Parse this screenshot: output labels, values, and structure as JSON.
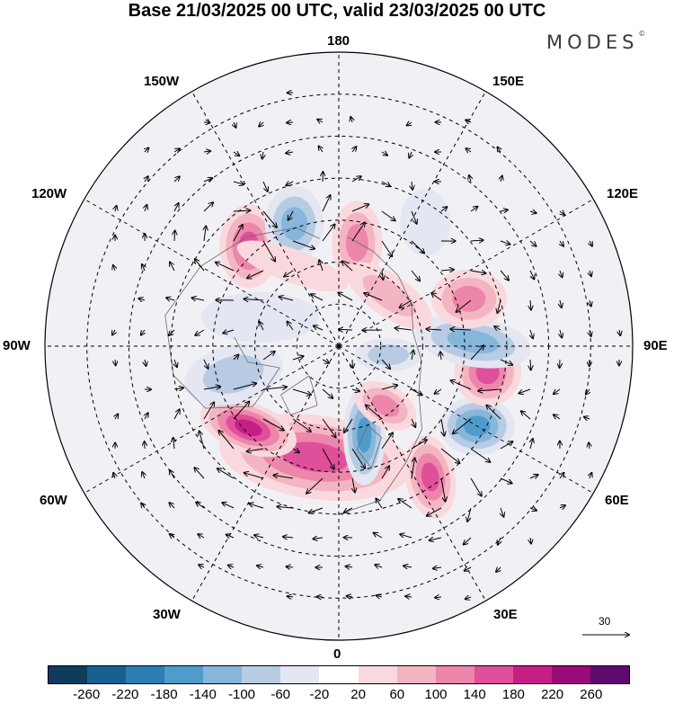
{
  "title": "Base 21/03/2025 00 UTC, valid 23/03/2025 00 UTC",
  "brand": {
    "text": "MODES",
    "mark": "©"
  },
  "projection": "north polar stereographic",
  "field": "geopotential height anomaly with wind vectors",
  "longitude_labels": {
    "top": "180",
    "top_left": "150W",
    "top_right": "150E",
    "upper_left": "120W",
    "upper_right": "120E",
    "left": "90W",
    "right": "90E",
    "lower_left": "60W",
    "lower_right": "60E",
    "bottom_left": "30W",
    "bottom_right": "30E",
    "bottom": "0"
  },
  "reference_vector": {
    "value": "30",
    "icon": "arrow-right-icon"
  },
  "colorbar": {
    "colors": [
      "#0f3b5c",
      "#195f8f",
      "#2b7db3",
      "#4f9bcb",
      "#86b6da",
      "#b7cbe5",
      "#e4e6f1",
      "#ffffff",
      "#f9d9de",
      "#f4b5c3",
      "#ed86ab",
      "#e0509a",
      "#c51f86",
      "#9a0a7a",
      "#5e0a6e"
    ],
    "tick_labels": [
      "-260",
      "-220",
      "-180",
      "-140",
      "-100",
      "-60",
      "-20",
      "20",
      "60",
      "100",
      "140",
      "180",
      "220",
      "260"
    ]
  },
  "anomalies": [
    {
      "name": "pos-1",
      "lon": -12,
      "colat": 27,
      "rx": 23,
      "ry": 10,
      "rot": 8,
      "level": 4
    },
    {
      "name": "pos-2",
      "lon": -48,
      "colat": 29,
      "rx": 12,
      "ry": 6,
      "rot": 20,
      "level": 5
    },
    {
      "name": "neg-1",
      "lon": 16,
      "colat": 22,
      "rx": 5,
      "ry": 12,
      "rot": 0,
      "level": -4
    },
    {
      "name": "neg-2",
      "lon": -75,
      "colat": 26,
      "rx": 12,
      "ry": 7,
      "rot": -15,
      "level": -2
    },
    {
      "name": "pos-3",
      "lon": 38,
      "colat": 18,
      "rx": 8,
      "ry": 5,
      "rot": 30,
      "level": 3
    },
    {
      "name": "pos-4",
      "lon": 35,
      "colat": 38,
      "rx": 6,
      "ry": 10,
      "rot": -10,
      "level": 4
    },
    {
      "name": "neg-3",
      "lon": 60,
      "colat": 38,
      "rx": 9,
      "ry": 7,
      "rot": 0,
      "level": -4
    },
    {
      "name": "pos-5",
      "lon": 80,
      "colat": 36,
      "rx": 8,
      "ry": 8,
      "rot": 0,
      "level": 4
    },
    {
      "name": "neg-4",
      "lon": 92,
      "colat": 32,
      "rx": 14,
      "ry": 6,
      "rot": 10,
      "level": -3
    },
    {
      "name": "pos-6",
      "lon": 110,
      "colat": 33,
      "rx": 9,
      "ry": 7,
      "rot": 0,
      "level": 3
    },
    {
      "name": "pos-7",
      "lon": -138,
      "colat": 32,
      "rx": 7,
      "ry": 10,
      "rot": 0,
      "level": 4
    },
    {
      "name": "neg-5",
      "lon": -160,
      "colat": 31,
      "rx": 7,
      "ry": 9,
      "rot": 0,
      "level": -3
    },
    {
      "name": "pos-8",
      "lon": 170,
      "colat": 25,
      "rx": 6,
      "ry": 10,
      "rot": 0,
      "level": 3
    },
    {
      "name": "neg-6",
      "lon": 145,
      "colat": 36,
      "rx": 6,
      "ry": 8,
      "rot": 0,
      "level": -1
    },
    {
      "name": "pos-9",
      "lon": 135,
      "colat": 17,
      "rx": 12,
      "ry": 5,
      "rot": 35,
      "level": 2
    },
    {
      "name": "neg-7",
      "lon": -110,
      "colat": 20,
      "rx": 14,
      "ry": 6,
      "rot": 0,
      "level": -1
    },
    {
      "name": "pos-10",
      "lon": -150,
      "colat": 22,
      "rx": 14,
      "ry": 4,
      "rot": 20,
      "level": 1
    },
    {
      "name": "neg-8",
      "lon": 80,
      "colat": 12,
      "rx": 8,
      "ry": 4,
      "rot": 0,
      "level": -2
    }
  ]
}
